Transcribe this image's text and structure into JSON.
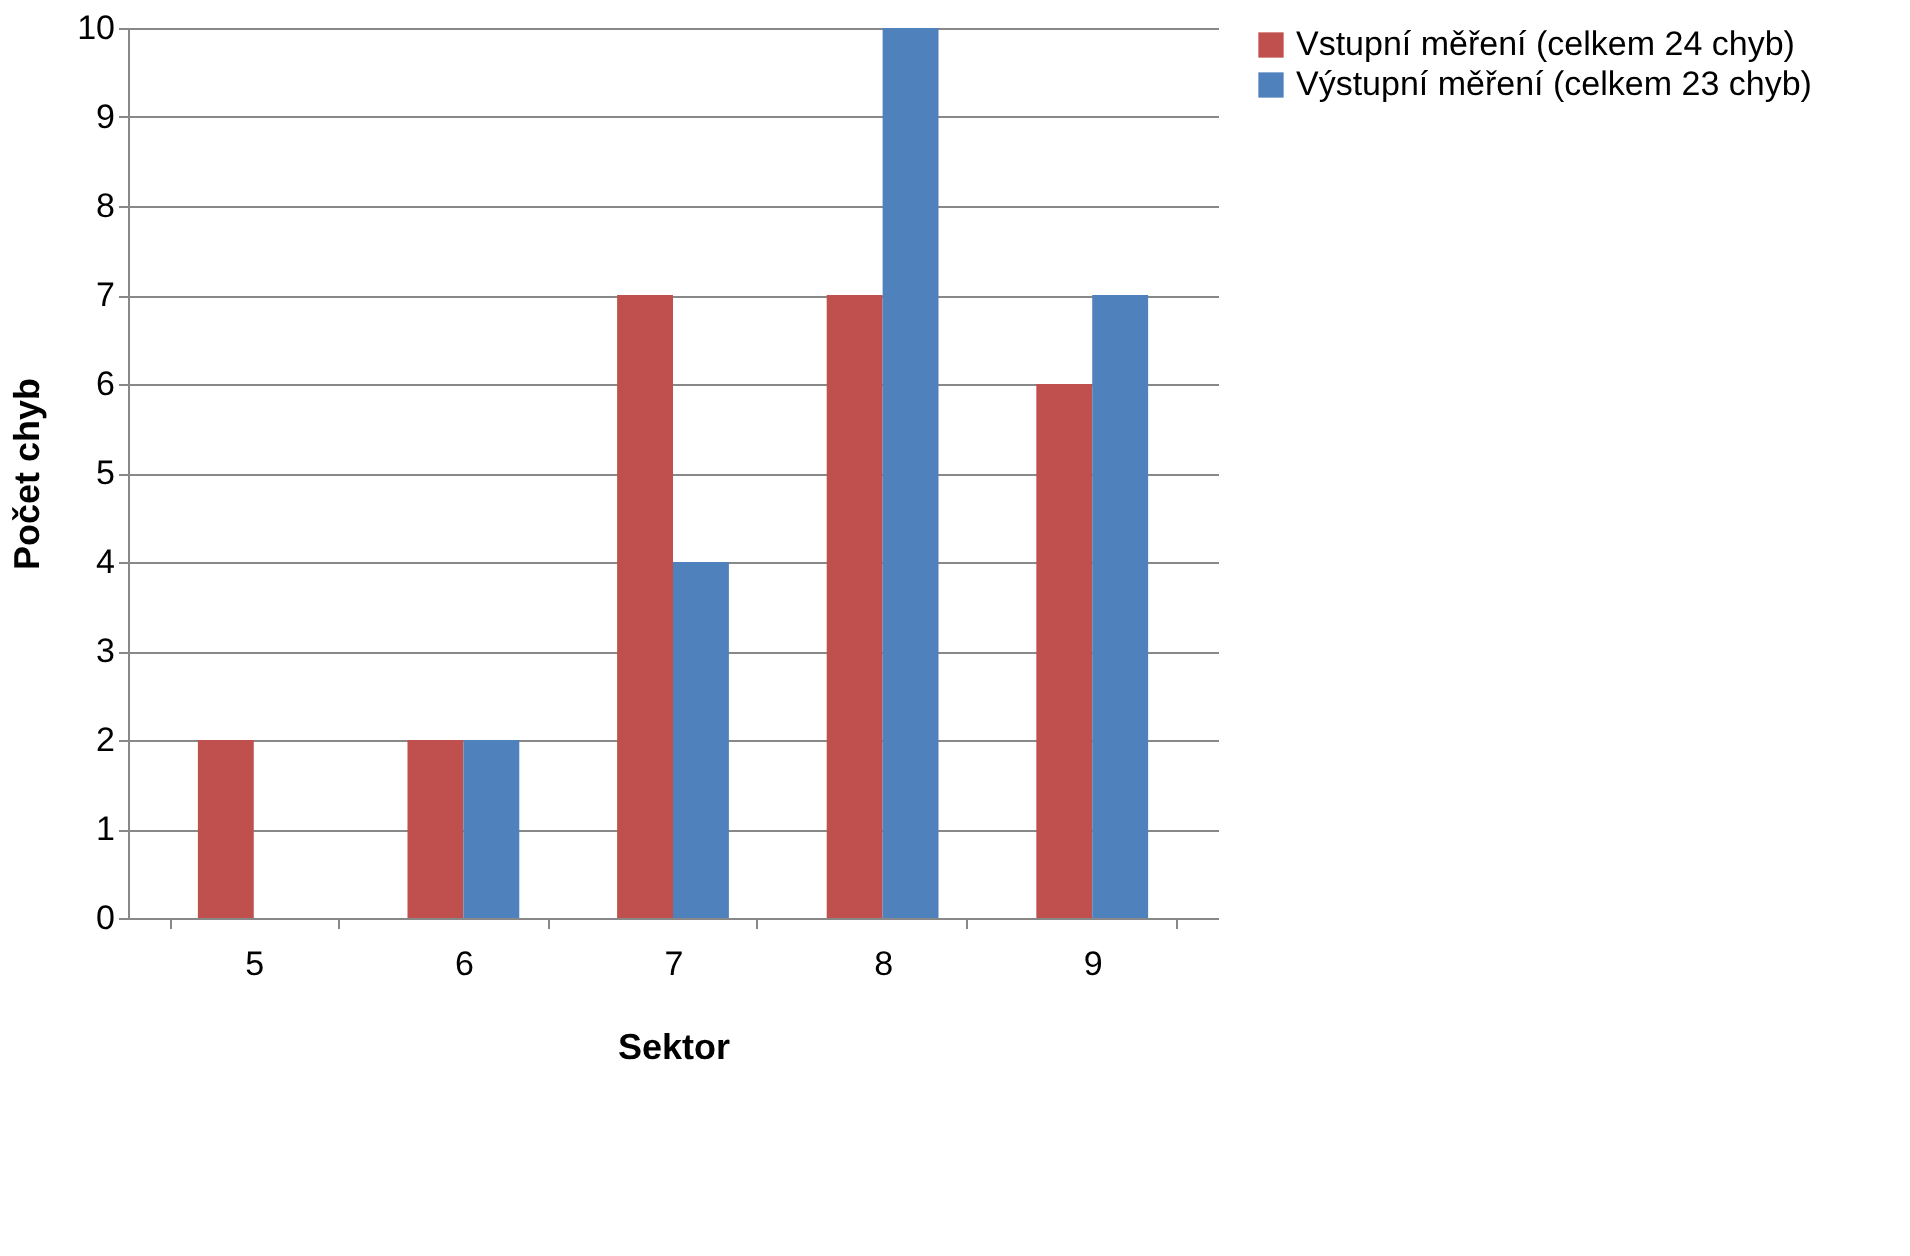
{
  "chart_data": {
    "type": "bar",
    "xlabel": "Sektor",
    "ylabel": "Počet chyb",
    "categories": [
      "5",
      "6",
      "7",
      "8",
      "9"
    ],
    "series": [
      {
        "name": "Vstupní měření (celkem 24 chyb)",
        "color": "#c0504d",
        "values": [
          2,
          2,
          7,
          7,
          6
        ]
      },
      {
        "name": "Výstupní měření (celkem 23 chyb)",
        "color": "#4f81bd",
        "values": [
          0,
          2,
          4,
          10,
          7
        ]
      }
    ],
    "ylim": [
      0,
      10
    ],
    "yticks": [
      0,
      1,
      2,
      3,
      4,
      5,
      6,
      7,
      8,
      9,
      10
    ],
    "grid": "y",
    "legend": "right"
  }
}
